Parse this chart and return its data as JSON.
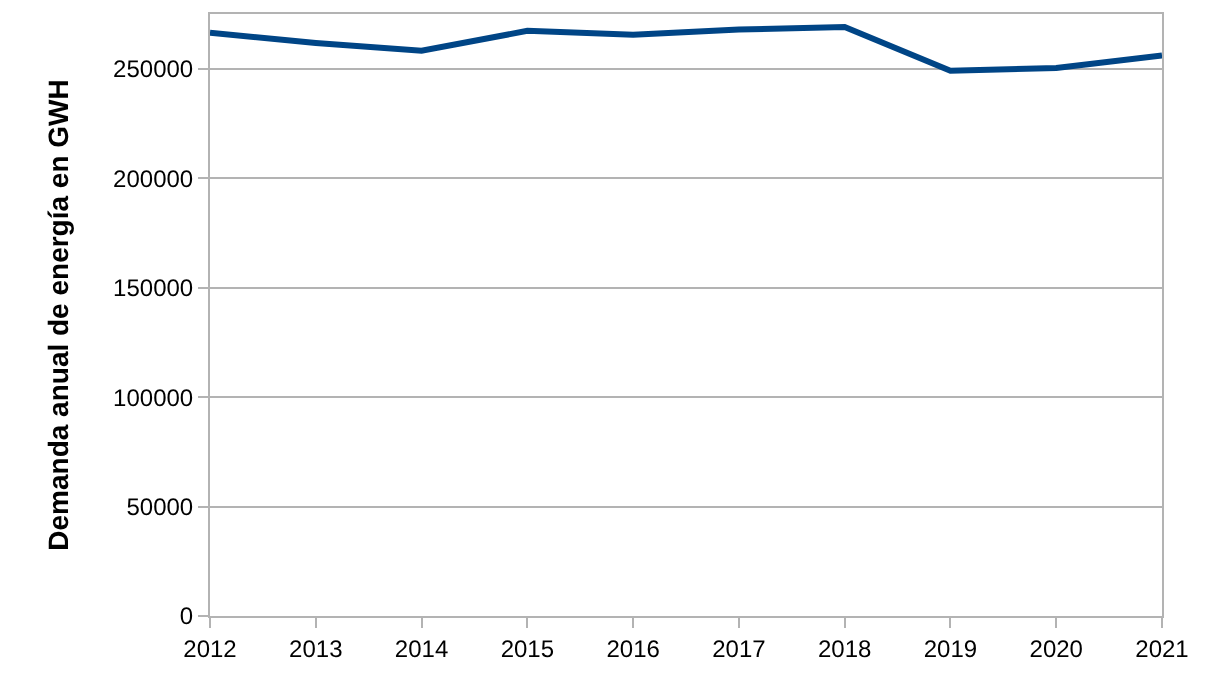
{
  "chart_data": {
    "type": "line",
    "ylabel": "Demanda anual de energía en GWH",
    "x": [
      2012,
      2013,
      2014,
      2015,
      2016,
      2017,
      2018,
      2019,
      2020,
      2021
    ],
    "series": [
      {
        "color": "#004586",
        "values": [
          266400,
          261800,
          258200,
          267300,
          265500,
          267900,
          269100,
          249100,
          250300,
          256100
        ]
      }
    ],
    "xlim": [
      2012,
      2021
    ],
    "xticks": [
      2012,
      2013,
      2014,
      2015,
      2016,
      2017,
      2018,
      2019,
      2020,
      2021
    ],
    "ylim": [
      0,
      275000
    ],
    "yticks": [
      0,
      50000,
      100000,
      150000,
      200000,
      250000
    ],
    "grid": "y",
    "legend": false,
    "marker": "none",
    "line_style": "solid"
  }
}
